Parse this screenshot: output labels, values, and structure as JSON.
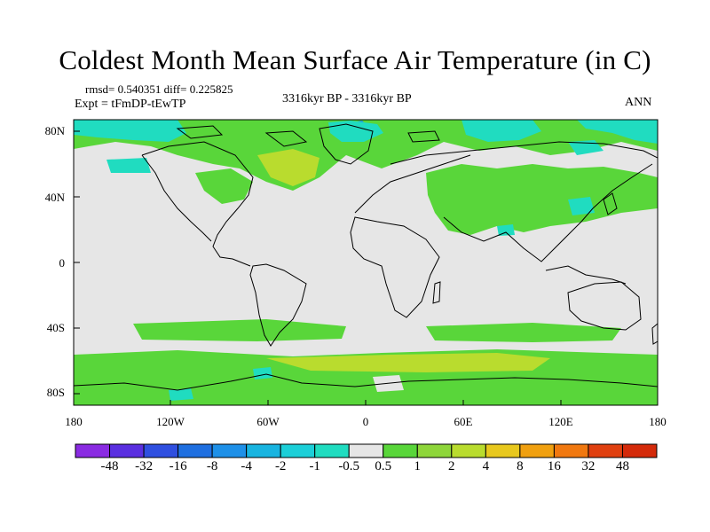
{
  "title": "Coldest Month Mean Surface Air Temperature (in C)",
  "stats": "rmsd= 0.540351 diff= 0.225825",
  "experiment": "Expt = tFmDP-tEwTP",
  "period": "3316kyr BP - 3316kyr BP",
  "season": "ANN",
  "lat_labels": [
    "80N",
    "40N",
    "0",
    "40S",
    "80S"
  ],
  "lon_labels": [
    "180",
    "120W",
    "60W",
    "0",
    "60E",
    "120E",
    "180"
  ],
  "colorbar": {
    "labels": [
      "-48",
      "-32",
      "-16",
      "-8",
      "-4",
      "-2",
      "-1",
      "-0.5",
      "0.5",
      "1",
      "2",
      "4",
      "8",
      "16",
      "32",
      "48"
    ],
    "colors": [
      "#8a2be2",
      "#5a2fe0",
      "#2f4fe0",
      "#1f6fe0",
      "#1e90e8",
      "#18b4e0",
      "#1ccfd8",
      "#20dcc0",
      "#e6e6e6",
      "#59d63a",
      "#8ed63a",
      "#b9dc2e",
      "#e8c81e",
      "#f0a010",
      "#f07810",
      "#e04010",
      "#d42a0a"
    ]
  },
  "map": {
    "background": "#e6e6e6",
    "colors": {
      "green": "#59d63a",
      "lightgreen": "#8ed63a",
      "yellowgreen": "#b9dc2e",
      "cyan": "#20dcc0",
      "blue": "#1e90e8",
      "coast": "#000000"
    }
  }
}
